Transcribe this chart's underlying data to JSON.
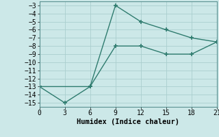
{
  "line1_x": [
    0,
    6,
    9,
    12,
    15,
    18,
    21
  ],
  "line1_y": [
    -13,
    -13,
    -3,
    -5,
    -6,
    -7,
    -7.5
  ],
  "line2_x": [
    0,
    3,
    6,
    9,
    12,
    15,
    18,
    21
  ],
  "line2_y": [
    -13,
    -15,
    -13,
    -8,
    -8,
    -9,
    -9,
    -7.5
  ],
  "line_color": "#2e7b6e",
  "bg_color": "#cce8e8",
  "grid_color": "#aacece",
  "xlabel": "Humidex (Indice chaleur)",
  "xlim": [
    0,
    21
  ],
  "ylim": [
    -15.5,
    -2.5
  ],
  "xticks": [
    0,
    3,
    6,
    9,
    12,
    15,
    18,
    21
  ],
  "yticks": [
    -3,
    -4,
    -5,
    -6,
    -7,
    -8,
    -9,
    -10,
    -11,
    -12,
    -13,
    -14,
    -15
  ],
  "tick_fontsize": 7,
  "label_fontsize": 7.5
}
